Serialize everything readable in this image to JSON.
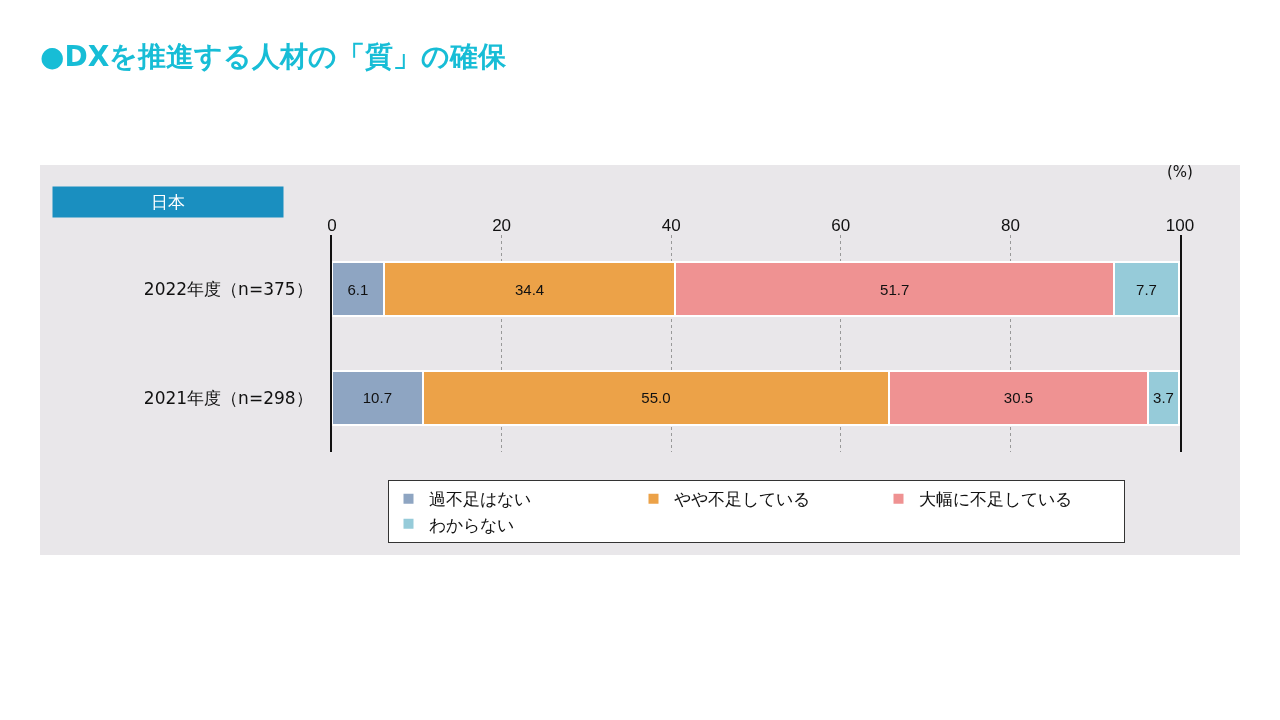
{
  "chart_data": {
    "type": "bar",
    "title": "●DXを推進する人材の「質」の確保",
    "orientation": "horizontal",
    "stacked": true,
    "categories": [
      "2022年度（n=375）",
      "2021年度（n=298）"
    ],
    "series": [
      {
        "name": "過不足はない",
        "color": "#8ea5c2",
        "values": [
          6.1,
          10.7
        ],
        "value_labels": [
          "6.1",
          "10.7"
        ]
      },
      {
        "name": "やや不足している",
        "color": "#eca248",
        "values": [
          34.4,
          55.0
        ],
        "value_labels": [
          "34.4",
          "55.0"
        ]
      },
      {
        "name": "大幅に不足している",
        "color": "#ef9292",
        "values": [
          51.7,
          30.5
        ],
        "value_labels": [
          "51.7",
          "30.5"
        ]
      },
      {
        "name": "わからない",
        "color": "#96cbd9",
        "values": [
          7.7,
          3.7
        ],
        "value_labels": [
          "7.7",
          "3.7"
        ]
      }
    ],
    "xlim": [
      0,
      100
    ],
    "xticks": [
      0,
      20,
      40,
      60,
      80,
      100
    ],
    "grid": "x",
    "legend": "bottom",
    "annotations": [
      "日本",
      "(%)"
    ]
  }
}
